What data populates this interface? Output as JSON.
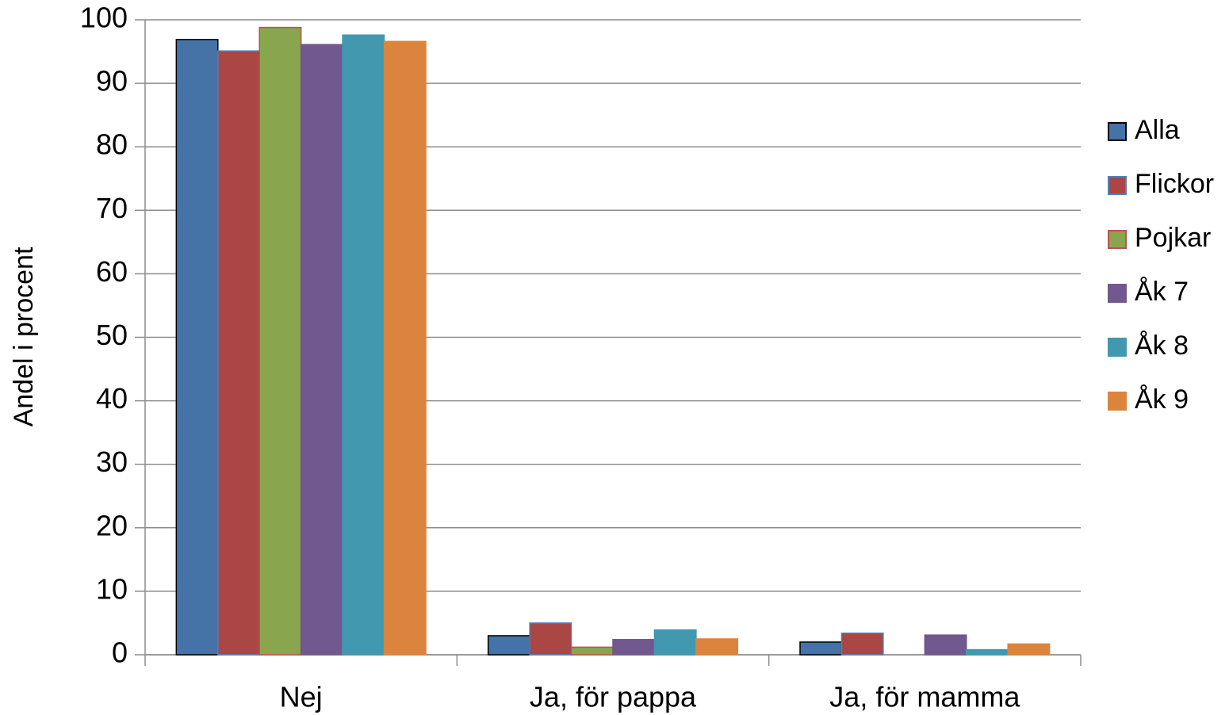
{
  "chart_data": {
    "type": "bar",
    "y_label": "Andel i procent",
    "categories": [
      "Nej",
      "Ja, för pappa",
      "Ja, för mamma"
    ],
    "series": [
      {
        "name": "Alla",
        "color": "#4572a7",
        "edgecolor": "#000000",
        "values": [
          96.9,
          3.0,
          2.0
        ]
      },
      {
        "name": "Flickor",
        "color": "#aa4643",
        "edgecolor": "#4f81bd",
        "values": [
          95.1,
          5.0,
          3.4
        ]
      },
      {
        "name": "Pojkar",
        "color": "#89a54e",
        "edgecolor": "#c0504d",
        "values": [
          98.8,
          1.2,
          0
        ]
      },
      {
        "name": "Åk 7",
        "color": "#71588f",
        "edgecolor": "#71588f",
        "values": [
          96.1,
          2.4,
          3.1
        ]
      },
      {
        "name": "Åk 8",
        "color": "#4198af",
        "edgecolor": "#4198af",
        "values": [
          97.6,
          3.9,
          0.8
        ]
      },
      {
        "name": "Åk 9",
        "color": "#db843d",
        "edgecolor": "#db843d",
        "values": [
          96.6,
          2.5,
          1.7
        ]
      }
    ],
    "ylim": [
      0,
      100
    ],
    "yticks": [
      0,
      10,
      20,
      30,
      40,
      50,
      60,
      70,
      80,
      90,
      100
    ],
    "grid": true,
    "legend": "right"
  }
}
